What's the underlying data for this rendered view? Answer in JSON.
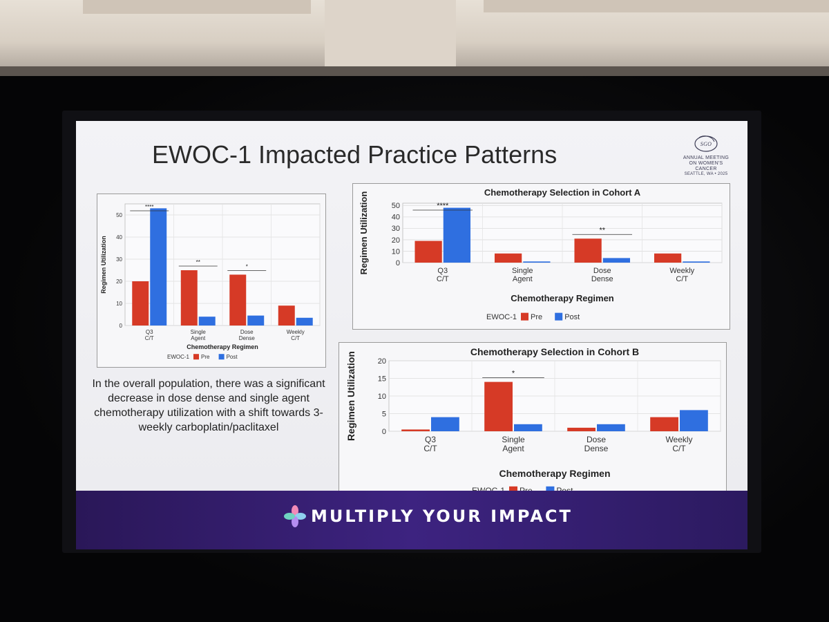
{
  "slide": {
    "title": "EWOC-1 Impacted Practice Patterns",
    "logo_lines": [
      "SGO",
      "ANNUAL MEETING",
      "ON WOMEN'S CANCER",
      "SEATTLE, WA • 2025"
    ],
    "caption": "In the overall population, there was a significant decrease in dose dense and single agent chemotherapy utilization with a shift towards 3-weekly carboplatin/paclitaxel",
    "banner_text": "MULTIPLY YOUR IMPACT",
    "colors": {
      "pre": "#d63a26",
      "post": "#2f6fe0",
      "banner": "#32206c"
    }
  },
  "chart_data": [
    {
      "id": "overall",
      "type": "bar",
      "title": "",
      "categories": [
        [
          "Q3",
          "C/T"
        ],
        [
          "Single",
          "Agent"
        ],
        [
          "Dose",
          "Dense"
        ],
        [
          "Weekly",
          "C/T"
        ]
      ],
      "series": [
        {
          "name": "Pre",
          "values": [
            20,
            25,
            23,
            9
          ]
        },
        {
          "name": "Post",
          "values": [
            53,
            4,
            4.5,
            3.5
          ]
        }
      ],
      "ylim": [
        0,
        55
      ],
      "yticks": [
        0,
        10,
        20,
        30,
        40,
        50
      ],
      "xlabel": "Chemotherapy Regimen",
      "ylabel": "Regimen Utilization",
      "legend_title": "EWOC-1",
      "significance": [
        {
          "category": 0,
          "label": "****"
        },
        {
          "category": 1,
          "label": "**"
        },
        {
          "category": 2,
          "label": "*"
        }
      ]
    },
    {
      "id": "cohort-a",
      "type": "bar",
      "title": "Chemotherapy Selection in Cohort A",
      "categories": [
        [
          "Q3",
          "C/T"
        ],
        [
          "Single",
          "Agent"
        ],
        [
          "Dose",
          "Dense"
        ],
        [
          "Weekly",
          "C/T"
        ]
      ],
      "series": [
        {
          "name": "Pre",
          "values": [
            19,
            8,
            21,
            8
          ]
        },
        {
          "name": "Post",
          "values": [
            48,
            1,
            4,
            1
          ]
        }
      ],
      "ylim": [
        0,
        52
      ],
      "yticks": [
        0,
        10,
        20,
        30,
        40,
        50
      ],
      "xlabel": "Chemotherapy Regimen",
      "ylabel": "Regimen Utilization",
      "legend_title": "EWOC-1",
      "significance": [
        {
          "category": 0,
          "label": "****"
        },
        {
          "category": 2,
          "label": "**"
        }
      ]
    },
    {
      "id": "cohort-b",
      "type": "bar",
      "title": "Chemotherapy Selection in Cohort B",
      "categories": [
        [
          "Q3",
          "C/T"
        ],
        [
          "Single",
          "Agent"
        ],
        [
          "Dose",
          "Dense"
        ],
        [
          "Weekly",
          "C/T"
        ]
      ],
      "series": [
        {
          "name": "Pre",
          "values": [
            0.5,
            14,
            1,
            4
          ]
        },
        {
          "name": "Post",
          "values": [
            4,
            2,
            2,
            6
          ]
        }
      ],
      "ylim": [
        0,
        20
      ],
      "yticks": [
        0,
        5,
        10,
        15,
        20
      ],
      "xlabel": "Chemotherapy Regimen",
      "ylabel": "Regimen Utilization",
      "legend_title": "EWOC-1",
      "significance": [
        {
          "category": 1,
          "label": "*"
        }
      ]
    }
  ]
}
